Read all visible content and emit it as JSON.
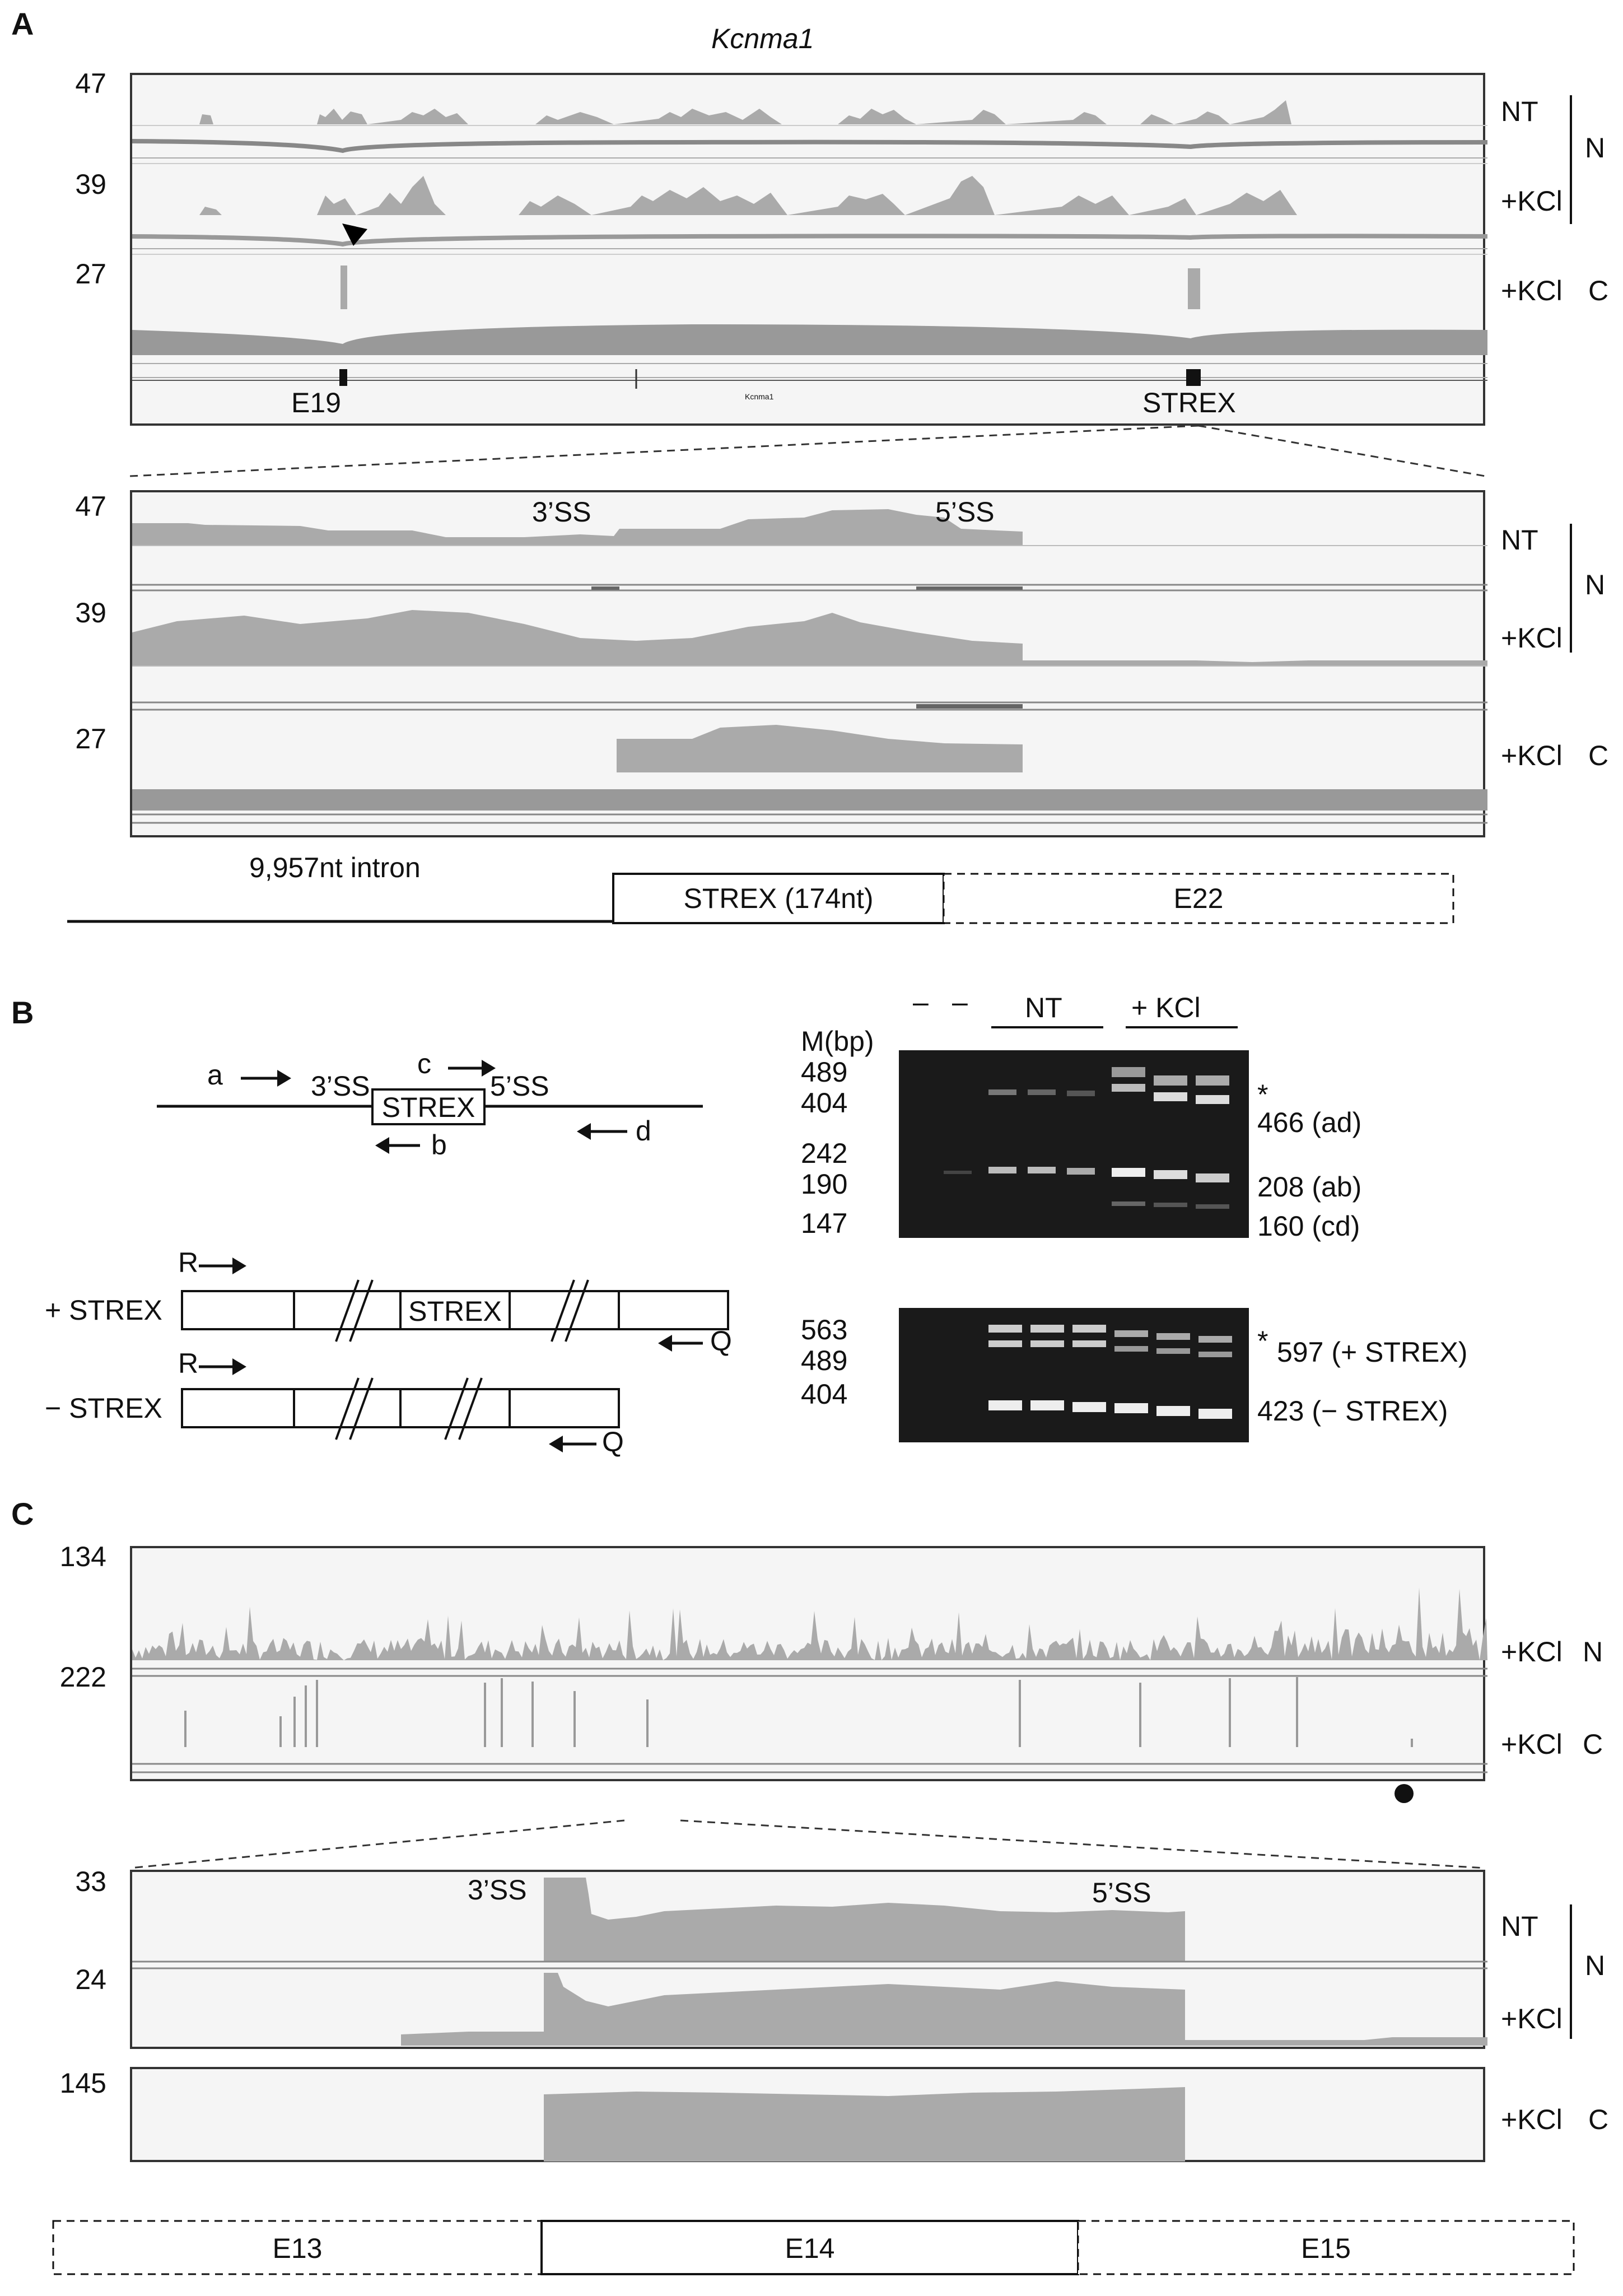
{
  "panel_a": {
    "letter": "A",
    "title": "Kcnma1",
    "top_track": {
      "scales": [
        "47",
        "39",
        "27"
      ],
      "conditions": [
        "NT",
        "+KCl",
        "+KCl"
      ],
      "groups": [
        "N",
        "C"
      ],
      "exon_labels": [
        "E19",
        "STREX"
      ],
      "gene_label": "Kcnma1"
    },
    "zoom_track": {
      "scales": [
        "47",
        "39",
        "27"
      ],
      "ss_labels": [
        "3’SS",
        "5’SS"
      ],
      "conditions": [
        "NT",
        "+KCl",
        "+KCl"
      ],
      "groups": [
        "N",
        "C"
      ]
    },
    "gene_model": {
      "intron": "9,957nt intron",
      "strex": "STREX (174nt)",
      "e22": "E22"
    }
  },
  "panel_b": {
    "letter": "B",
    "schematic_top": {
      "primers": [
        "a",
        "b",
        "c",
        "d"
      ],
      "ss_labels": [
        "3’SS",
        "5’SS"
      ],
      "exon": "STREX"
    },
    "schematic_bottom": {
      "plus_label": "+ STREX",
      "minus_label": "− STREX",
      "primer_r": "R",
      "primer_q": "Q",
      "exon": "STREX"
    },
    "gel_top": {
      "marker_header": "M(bp)",
      "lane_dashes": [
        "–",
        "–"
      ],
      "group_labels": [
        "NT",
        "+ KCl"
      ],
      "markers": [
        "489",
        "404",
        "242",
        "190",
        "147"
      ],
      "bands": [
        "466 (ad)",
        "208 (ab)",
        "160 (cd)"
      ],
      "star": "*"
    },
    "gel_bottom": {
      "markers": [
        "563",
        "489",
        "404"
      ],
      "bands": [
        "597 (+ STREX)",
        "423 (− STREX)"
      ],
      "star": "*"
    }
  },
  "panel_c": {
    "letter": "C",
    "top_track": {
      "scales": [
        "134",
        "222"
      ],
      "conditions": [
        "+KCl",
        "+KCl"
      ],
      "groups": [
        "N",
        "C"
      ]
    },
    "zoom_track": {
      "scales": [
        "33",
        "24",
        "145"
      ],
      "ss_labels": [
        "3’SS",
        "5’SS"
      ],
      "conditions": [
        "NT",
        "+KCl",
        "+KCl"
      ],
      "groups": [
        "N",
        "C"
      ]
    },
    "gene_model": {
      "exons": [
        "E13",
        "E14",
        "E15"
      ]
    }
  }
}
